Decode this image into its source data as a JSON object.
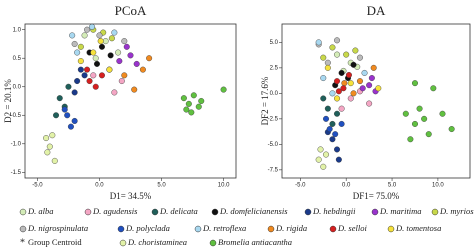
{
  "chart_data": [
    {
      "type": "scatter",
      "title": "PCoA",
      "xlabel": "D1= 34.5%",
      "ylabel": "D2 = 20.1%",
      "xlim": [
        -6,
        11
      ],
      "ylim": [
        -1.6,
        1.1
      ],
      "xticks": [
        {
          "value": -5,
          "label": "-5.0"
        },
        {
          "value": 0,
          "label": "0.0"
        },
        {
          "value": 5,
          "label": "5.0"
        },
        {
          "value": 10,
          "label": "10.0"
        }
      ],
      "yticks": [
        {
          "value": 1,
          "label": "1.0"
        },
        0.5,
        {
          "value": 0,
          "label": "0.0"
        },
        -0.5,
        {
          "value": -1,
          "label": "-1.0"
        },
        -1.5
      ],
      "series": [
        {
          "name": "D. alba",
          "color": "#d4ecb8",
          "x": [
            -1.2,
            0.5,
            1.5,
            -0.3
          ],
          "y": [
            0.9,
            0.8,
            0.6,
            0.5
          ]
        },
        {
          "name": "D. agudensis",
          "color": "#f4a6c4",
          "x": [
            0.8,
            1.8,
            -0.5,
            1.2
          ],
          "y": [
            0.3,
            0.1,
            0.2,
            -0.1
          ]
        },
        {
          "name": "D. delicata",
          "color": "#1f5f5a",
          "x": [
            -3.2,
            -2.8,
            -3.5,
            -2.5
          ],
          "y": [
            -0.2,
            -0.35,
            -0.5,
            0
          ]
        },
        {
          "name": "D. domfelicianensis",
          "color": "#111111",
          "x": [
            -0.8,
            0.2,
            -0.2,
            0.9
          ],
          "y": [
            0.6,
            0.7,
            0.4,
            0.55
          ]
        },
        {
          "name": "D. hebdingii",
          "color": "#1a3a8a",
          "x": [
            -1.8,
            -1.5,
            -2,
            -1.2
          ],
          "y": [
            0.1,
            0.3,
            -0.1,
            0.2
          ]
        },
        {
          "name": "D. maritima",
          "color": "#9933cc",
          "x": [
            2.5,
            3,
            2.2,
            1.6
          ],
          "y": [
            0.55,
            0.4,
            0.7,
            0.45
          ]
        },
        {
          "name": "D. myriostachya",
          "color": "#c8d84a",
          "x": [
            -0.5,
            0.3,
            1,
            -1.5
          ],
          "y": [
            1,
            0.95,
            0.85,
            0.7
          ]
        },
        {
          "name": "D. nigrospinulata",
          "color": "#bbbbbb",
          "x": [
            -2,
            -1,
            0,
            2
          ],
          "y": [
            0.75,
            1,
            0.9,
            0.8
          ]
        },
        {
          "name": "D. polyclada",
          "color": "#2050c0",
          "x": [
            -2.6,
            -2.3,
            -2,
            -2.8
          ],
          "y": [
            -0.5,
            -0.7,
            -0.6,
            -0.4
          ]
        },
        {
          "name": "D. retroflexa",
          "color": "#a8d8f0",
          "x": [
            -2.2,
            -0.6,
            1.2,
            -1.8
          ],
          "y": [
            0.9,
            1.05,
            0.95,
            0.6
          ]
        },
        {
          "name": "D. rigida",
          "color": "#f08a20",
          "x": [
            2,
            3.5,
            2.8,
            4
          ],
          "y": [
            0.2,
            0.3,
            -0.05,
            0.5
          ]
        },
        {
          "name": "D. selloi",
          "color": "#d62020",
          "x": [
            -0.8,
            -0.3,
            0.2,
            -1
          ],
          "y": [
            0.1,
            0,
            0.2,
            0.3
          ]
        },
        {
          "name": "D. tomentosa",
          "color": "#f6e23c",
          "x": [
            -1.5,
            -0.5,
            0.8,
            0.1
          ],
          "y": [
            0.45,
            0.6,
            0.3,
            0.8
          ]
        },
        {
          "name": "D. choristaminea",
          "color": "#e2f2a8",
          "x": [
            -4.3,
            -4,
            -3.8,
            -3.6,
            -4.2
          ],
          "y": [
            -0.9,
            -1.05,
            -0.85,
            -1.3,
            -1.15
          ]
        },
        {
          "name": "Bromelia antiacantha",
          "color": "#60c040",
          "x": [
            6.8,
            7.2,
            7.6,
            8,
            7.4,
            8.2,
            7,
            10
          ],
          "y": [
            -0.2,
            -0.3,
            -0.15,
            -0.35,
            -0.45,
            -0.25,
            -0.4,
            -0.05
          ]
        }
      ]
    },
    {
      "type": "scatter",
      "title": "DA",
      "xlabel": "DF1= 75.0%",
      "ylabel": "DF2 = 17.6%",
      "xlim": [
        -7,
        13.5
      ],
      "ylim": [
        -8.3,
        6.8
      ],
      "xticks": [
        {
          "value": -5,
          "label": "-5.0"
        },
        {
          "value": 0,
          "label": "0.0"
        },
        {
          "value": 5,
          "label": "5.0"
        },
        {
          "value": 10,
          "label": "10.0"
        }
      ],
      "yticks": [
        {
          "value": 5,
          "label": "5.0"
        },
        2.5,
        {
          "value": 0,
          "label": "0.0"
        },
        -2.5,
        {
          "value": -5,
          "label": "-5.0"
        },
        -7.5
      ],
      "series": [
        {
          "color": "#d4ecb8",
          "x": [
            -1,
            0.5,
            -0.3,
            1.2
          ],
          "y": [
            3.8,
            3,
            2.2,
            2.6
          ]
        },
        {
          "color": "#f4a6c4",
          "x": [
            0.5,
            1.5,
            2.5,
            -0.5
          ],
          "y": [
            -0.5,
            0.2,
            -1,
            -1.5
          ]
        },
        {
          "color": "#1f5f5a",
          "x": [
            -2,
            -1.5,
            -1,
            -2.5
          ],
          "y": [
            -1.5,
            -3,
            -2,
            -0.5
          ]
        },
        {
          "color": "#111111",
          "x": [
            -0.5,
            0.2,
            -1.2,
            0.8
          ],
          "y": [
            2,
            1.5,
            0.8,
            2.8
          ]
        },
        {
          "color": "#1a3a8a",
          "x": [
            -1.5,
            -1,
            -2,
            -0.8
          ],
          "y": [
            -4.5,
            -5.5,
            -3.8,
            -6.5
          ]
        },
        {
          "color": "#9933cc",
          "x": [
            2.5,
            3.2,
            2.8,
            1.8
          ],
          "y": [
            0.8,
            0.2,
            1.5,
            0.5
          ]
        },
        {
          "color": "#c8d84a",
          "x": [
            -1.5,
            0,
            1,
            -2.5
          ],
          "y": [
            4.5,
            3.8,
            4.2,
            3.5
          ]
        },
        {
          "color": "#bbbbbb",
          "x": [
            -3,
            -2,
            1.5,
            -1
          ],
          "y": [
            4.8,
            3,
            3.5,
            5.2
          ]
        },
        {
          "color": "#2050c0",
          "x": [
            -1.8,
            -1.2,
            -0.5,
            -2.2
          ],
          "y": [
            -3.5,
            -4,
            -3,
            -2.5
          ]
        },
        {
          "color": "#a8d8f0",
          "x": [
            -3,
            -2.5,
            2,
            -1.5
          ],
          "y": [
            5,
            1.5,
            2,
            0
          ]
        },
        {
          "color": "#f08a20",
          "x": [
            -0.2,
            0.8,
            1.5,
            3
          ],
          "y": [
            1,
            0,
            1.2,
            2.5
          ]
        },
        {
          "color": "#d62020",
          "x": [
            -1,
            -0.3,
            0.3,
            -0.8
          ],
          "y": [
            1.2,
            0.5,
            1.8,
            0.2
          ]
        },
        {
          "color": "#f6e23c",
          "x": [
            -2,
            0.5,
            3.5,
            -1
          ],
          "y": [
            2.5,
            1,
            0.5,
            -0.5
          ]
        },
        {
          "color": "#e2f2a8",
          "x": [
            -2.8,
            -3,
            -2.5,
            -2.2
          ],
          "y": [
            -5.5,
            -6.5,
            -7.2,
            -6
          ]
        },
        {
          "color": "#60c040",
          "x": [
            6.5,
            7.5,
            8.5,
            9,
            8,
            7,
            10.5,
            11.5,
            9.5,
            7.5
          ],
          "y": [
            -2,
            -3,
            -2.5,
            -4,
            -1.5,
            -4.5,
            -2,
            -3.5,
            0.5,
            1
          ]
        }
      ]
    }
  ],
  "centroid_label": "Group Centroid"
}
